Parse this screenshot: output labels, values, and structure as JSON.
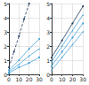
{
  "chart_data": [
    {
      "type": "line",
      "grid": true,
      "xlim": [
        0,
        30
      ],
      "xticks": [
        0,
        10,
        20,
        30
      ],
      "ylim": [
        0,
        5
      ],
      "yticks": [
        0,
        1,
        2,
        3,
        4,
        5
      ],
      "series": [
        {
          "color": "#1f3a5f",
          "marker": "circle",
          "line_style": "dashed",
          "x": [
            0,
            5,
            10,
            15,
            20
          ],
          "values": [
            0.5,
            1.6,
            2.7,
            3.9,
            5.0
          ]
        },
        {
          "color": "#4aa3d8",
          "marker": "circle",
          "line_style": "solid",
          "x": [
            0,
            10,
            20,
            30
          ],
          "values": [
            0.3,
            1.0,
            1.8,
            2.5
          ]
        },
        {
          "color": "#4aa3d8",
          "marker": "triangle",
          "line_style": "solid",
          "x": [
            0,
            10,
            20,
            30
          ],
          "values": [
            0.2,
            0.7,
            1.3,
            1.8
          ]
        },
        {
          "color": "#4aa3d8",
          "marker": "rect",
          "line_style": "solid",
          "x": [
            0,
            10,
            20,
            30
          ],
          "values": [
            0.1,
            0.5,
            0.8,
            1.2
          ]
        }
      ]
    },
    {
      "type": "line",
      "grid": true,
      "xlim": [
        0,
        30
      ],
      "xticks": [
        0,
        10,
        20,
        30
      ],
      "ylim": [
        0,
        5
      ],
      "yticks": [
        0,
        1,
        2,
        3,
        4,
        5
      ],
      "series": [
        {
          "color": "#1f3a5f",
          "marker": "circle",
          "line_style": "solid",
          "x": [
            0,
            10,
            20,
            30
          ],
          "values": [
            1.2,
            2.4,
            3.6,
            4.8
          ]
        },
        {
          "color": "#4aa3d8",
          "marker": "triangle",
          "line_style": "solid",
          "x": [
            0,
            10,
            20,
            30
          ],
          "values": [
            0.9,
            2.0,
            3.1,
            4.2
          ]
        },
        {
          "color": "#4aa3d8",
          "marker": "rect",
          "line_style": "solid",
          "x": [
            0,
            10,
            20,
            30
          ],
          "values": [
            0.6,
            1.6,
            2.6,
            3.6
          ]
        },
        {
          "color": "#4aa3d8",
          "marker": "diamond",
          "line_style": "solid",
          "x": [
            0,
            10,
            20,
            30
          ],
          "values": [
            0.3,
            1.2,
            2.1,
            3.0
          ]
        }
      ]
    }
  ]
}
